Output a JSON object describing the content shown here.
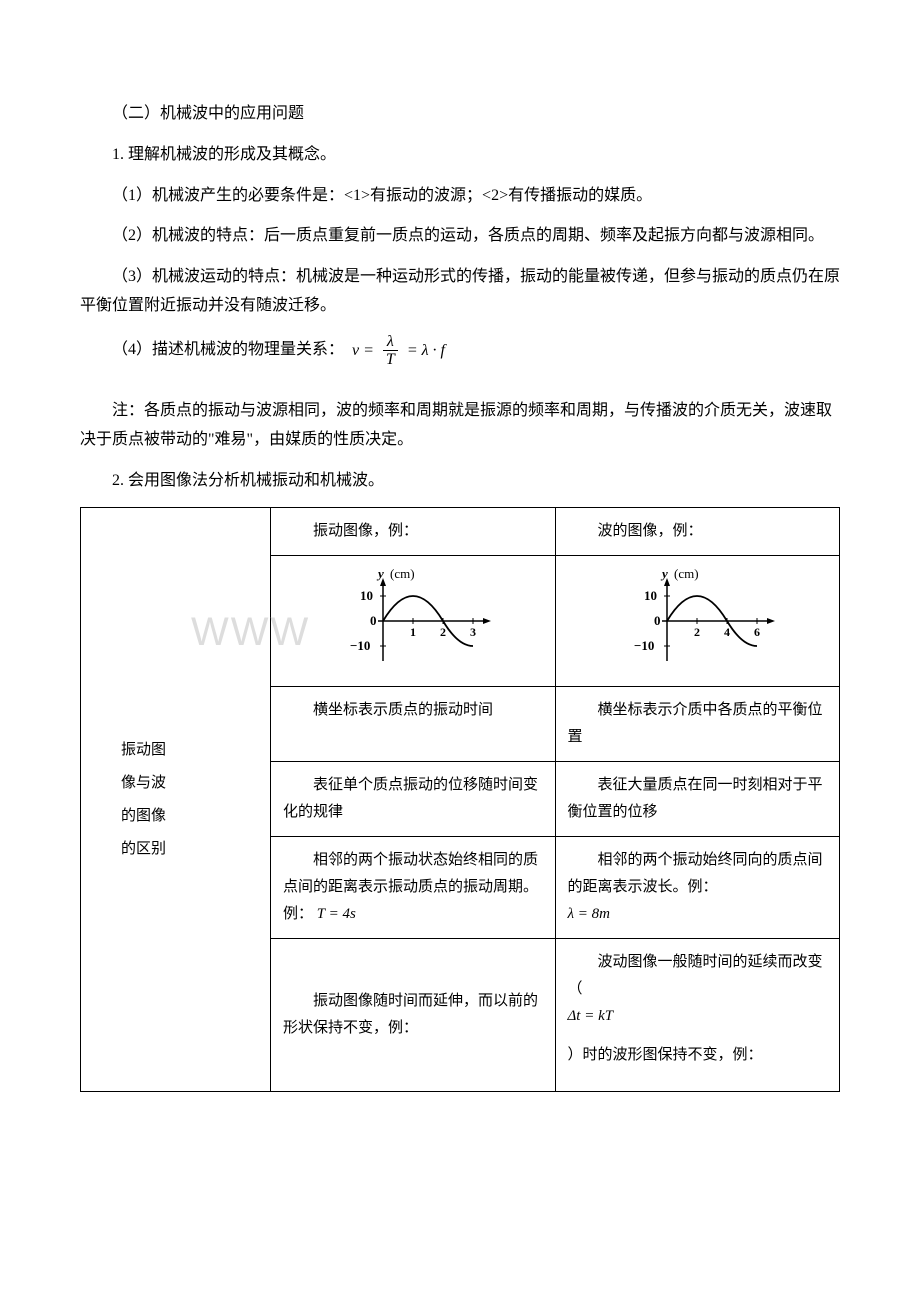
{
  "h_section": "（二）机械波中的应用问题",
  "p1": "1. 理解机械波的形成及其概念。",
  "p2": "（1）机械波产生的必要条件是：<1>有振动的波源；<2>有传播振动的媒质。",
  "p3": "（2）机械波的特点：后一质点重复前一质点的运动，各质点的周期、频率及起振方向都与波源相同。",
  "p4": "（3）机械波运动的特点：机械波是一种运动形式的传播，振动的能量被传递，但参与振动的质点仍在原平衡位置附近振动并没有随波迁移。",
  "p5_lead": "（4）描述机械波的物理量关系：",
  "formula": {
    "lhs": "v",
    "frac_num": "λ",
    "frac_den": "T",
    "rhs": "λ · f"
  },
  "note": "注：各质点的振动与波源相同，波的频率和周期就是振源的频率和周期，与传播波的介质无关，波速取决于质点被带动的\"难易\"，由媒质的性质决定。",
  "p6": "2. 会用图像法分析机械振动和机械波。",
  "table": {
    "side_label": "振动图\n像与波\n的图像\n的区别",
    "col1_hdr": "振动图像，例：",
    "col2_hdr": "波的图像，例：",
    "graph1": {
      "ylabel": "y",
      "yunit": "(cm)",
      "ymax": "10",
      "yzero": "0",
      "ymin": "−10",
      "xticks": [
        "1",
        "2",
        "3"
      ],
      "amplitude": 10,
      "period_units": 4,
      "xmax": 3
    },
    "graph2": {
      "ylabel": "y",
      "yunit": "(cm)",
      "ymax": "10",
      "yzero": "0",
      "ymin": "−10",
      "xticks": [
        "2",
        "4",
        "6"
      ],
      "amplitude": 10,
      "wavelength_units": 8,
      "xmax": 6
    },
    "r1c1": "横坐标表示质点的振动时间",
    "r1c2": "横坐标表示介质中各质点的平衡位置",
    "r2c1": "表征单个质点振动的位移随时间变化的规律",
    "r2c2": "表征大量质点在同一时刻相对于平衡位置的位移",
    "r3c1_a": "相邻的两个振动状态始终相同的质点间的距离表示振动质点的振动周期。例：",
    "r3c1_math": "T = 4s",
    "r3c2_a": "相邻的两个振动始终同向的质点间的距离表示波长。例：",
    "r3c2_math": "λ = 8m",
    "r4c1": "振动图像随时间而延伸，而以前的形状保持不变，例：",
    "r4c2_a": "波动图像一般随时间的延续而改变（",
    "r4c2_math": "Δt = kT",
    "r4c2_b": "）时的波形图保持不变，例："
  },
  "watermark": "WWW",
  "colors": {
    "text": "#000000",
    "bg": "#ffffff",
    "border": "#000000",
    "watermark": "#dddddd"
  }
}
